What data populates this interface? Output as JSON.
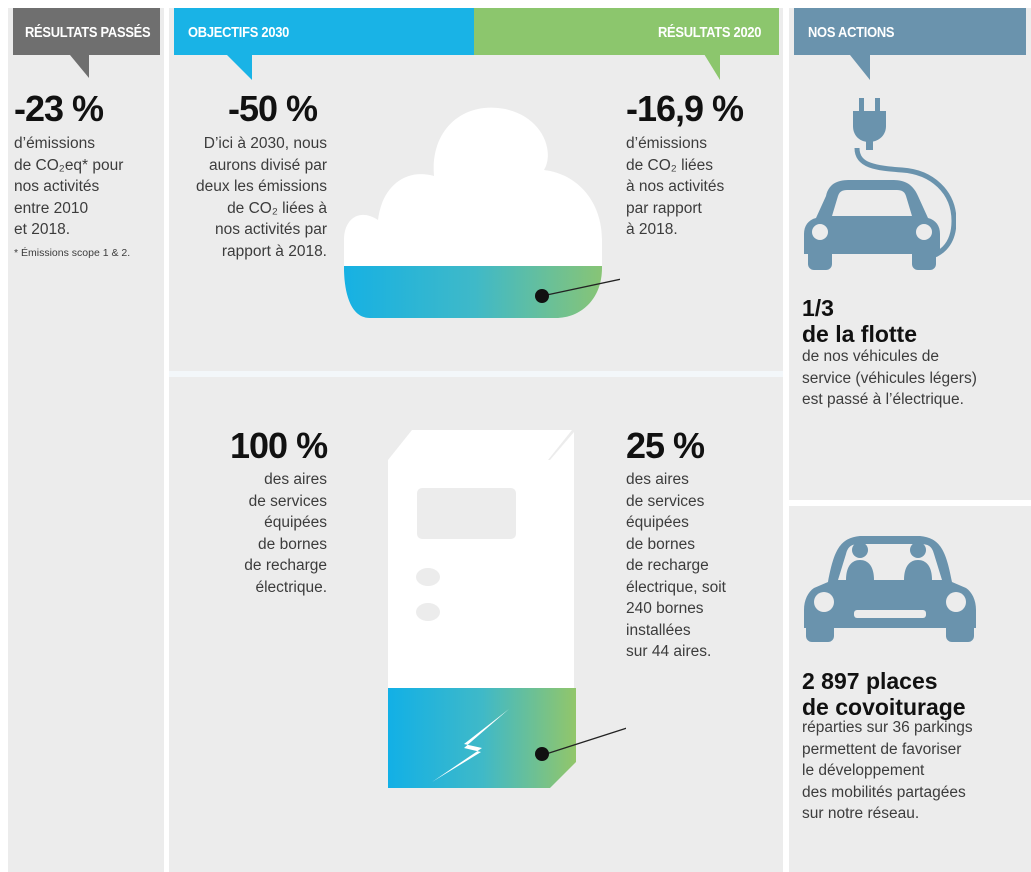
{
  "headers": {
    "past_results": "RÉSULTATS PASSÉS",
    "objectives_2030": "OBJECTIFS 2030",
    "results_2020": "RÉSULTATS 2020",
    "our_actions": "NOS ACTIONS"
  },
  "past": {
    "value": "-23 %",
    "lines": [
      "d’émissions",
      "de CO₂eq* pour",
      "nos activités",
      "entre 2010",
      "et 2018."
    ],
    "footnote": "* Émissions scope 1 & 2."
  },
  "objective": {
    "value": "-50 %",
    "lines": [
      "D’ici à 2030, nous",
      "aurons divisé par",
      "deux les émissions",
      "de CO₂ liées à",
      "nos activités par",
      "rapport à 2018."
    ]
  },
  "result": {
    "value": "-16,9 %",
    "lines": [
      "d’émissions",
      "de CO₂ liées",
      "à nos activités",
      "par rapport",
      "à 2018."
    ]
  },
  "charging_objective": {
    "value": "100 %",
    "lines": [
      "des aires",
      "de services",
      "équipées",
      "de bornes",
      "de recharge",
      "électrique."
    ]
  },
  "charging_result": {
    "value": "25 %",
    "lines": [
      "des aires",
      "de services",
      "équipées",
      "de bornes",
      "de recharge",
      "électrique, soit",
      "240 bornes",
      "installées",
      "sur 44 aires."
    ]
  },
  "fleet": {
    "title_1": "1/3",
    "title_2": "de la flotte",
    "lines": [
      "de nos véhicules de",
      "service (véhicules légers)",
      "est passé à l’électrique."
    ]
  },
  "carpool": {
    "title_1": "2 897 places",
    "title_2": "de covoiturage",
    "lines": [
      "réparties sur 36 parkings",
      "permettent de favoriser",
      "le développement",
      "des mobilités partagées",
      "sur notre réseau."
    ]
  },
  "colors": {
    "panel_bg": "#ececec",
    "past_tag": "#6f6f6f",
    "objective_tag": "#19b3e6",
    "result_tag": "#8cc66d",
    "actions_tag": "#6a93ad",
    "car_icon": "#6a93ad"
  },
  "icons": [
    "electric-car-plug-icon",
    "carpool-car-icon",
    "cloud-progress-icon",
    "charging-station-icon",
    "lightning-icon"
  ],
  "progress": {
    "co2_reduction_achieved_percent": 16.9,
    "co2_reduction_target_percent": 50,
    "charging_areas_achieved_percent": 25,
    "charging_areas_target_percent": 100
  }
}
